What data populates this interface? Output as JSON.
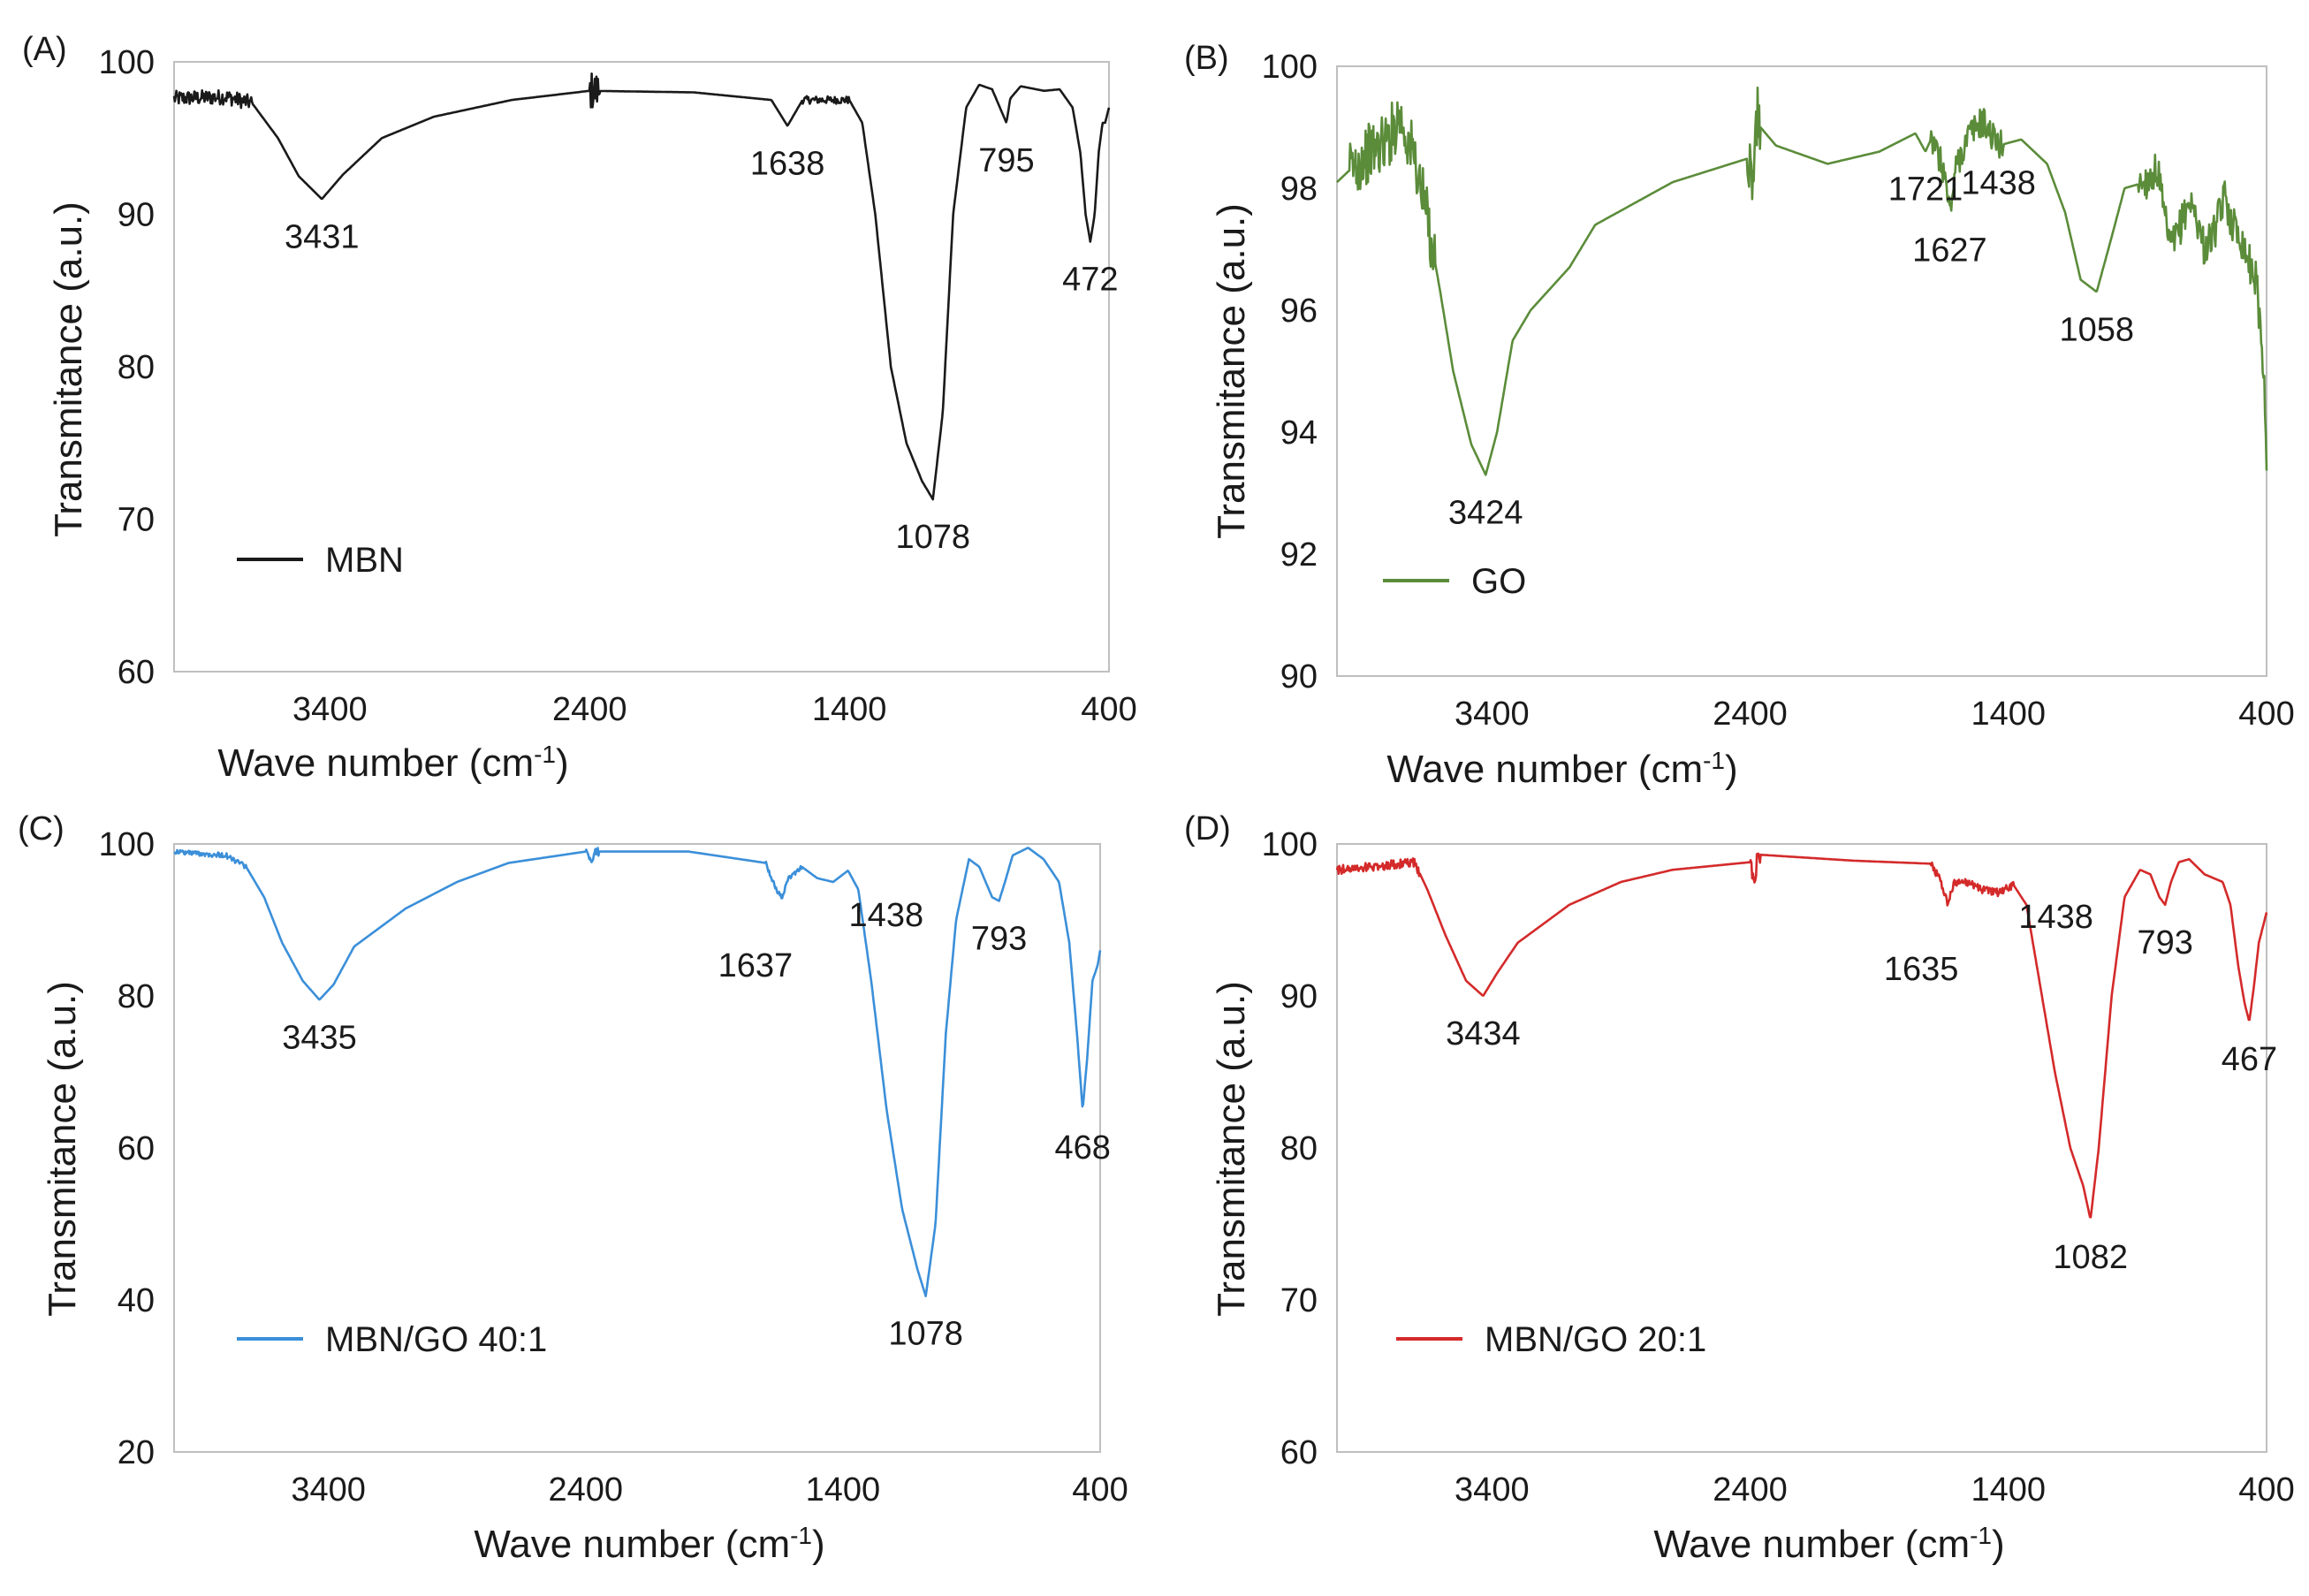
{
  "figure": {
    "background": "#ffffff"
  },
  "chart_data": [
    {
      "type": "line",
      "panel_label": "(A)",
      "series_name": "MBN",
      "color": "#1a1a1a",
      "xlabel": "Wave number (cm-1)",
      "ylabel": "Transmitance (a.u.)",
      "xlim": [
        4000,
        400
      ],
      "ylim": [
        60,
        100
      ],
      "xticks": [
        "3400",
        "2400",
        "1400",
        "400"
      ],
      "xtick_values": [
        3400,
        2400,
        1400,
        400
      ],
      "yticks": [
        "60",
        "70",
        "80",
        "90",
        "100"
      ],
      "ytick_values": [
        60,
        70,
        80,
        90,
        100
      ],
      "legend_position": "lower-left",
      "baseline": [
        [
          4000,
          97.6
        ],
        [
          3800,
          97.7
        ],
        [
          3700,
          97.3
        ],
        [
          3600,
          95.0
        ],
        [
          3520,
          92.5
        ],
        [
          3431,
          91.0
        ],
        [
          3350,
          92.6
        ],
        [
          3200,
          95.0
        ],
        [
          3000,
          96.4
        ],
        [
          2700,
          97.5
        ],
        [
          2400,
          98.1
        ],
        [
          2000,
          98.0
        ],
        [
          1700,
          97.5
        ],
        [
          1638,
          95.8
        ],
        [
          1580,
          97.5
        ],
        [
          1400,
          97.5
        ],
        [
          1350,
          96.0
        ],
        [
          1300,
          90.0
        ],
        [
          1240,
          80.0
        ],
        [
          1180,
          75.0
        ],
        [
          1120,
          72.5
        ],
        [
          1078,
          71.3
        ],
        [
          1040,
          77.0
        ],
        [
          1000,
          90.0
        ],
        [
          950,
          97.0
        ],
        [
          900,
          98.5
        ],
        [
          850,
          98.2
        ],
        [
          810,
          96.6
        ],
        [
          795,
          96.0
        ],
        [
          780,
          97.6
        ],
        [
          740,
          98.4
        ],
        [
          650,
          98.1
        ],
        [
          590,
          98.2
        ],
        [
          540,
          97.0
        ],
        [
          510,
          94.0
        ],
        [
          490,
          90.0
        ],
        [
          472,
          88.2
        ],
        [
          455,
          90.0
        ],
        [
          440,
          94.0
        ],
        [
          425,
          96.0
        ],
        [
          415,
          96.0
        ],
        [
          400,
          97.0
        ]
      ],
      "noise": [
        [
          4000,
          3700,
          0.5
        ],
        [
          2400,
          2360,
          1.3
        ],
        [
          1580,
          1400,
          0.25
        ]
      ],
      "peaks": [
        {
          "x": 3431,
          "y": 91.0,
          "label": "3431"
        },
        {
          "x": 1638,
          "y": 95.8,
          "label": "1638"
        },
        {
          "x": 1078,
          "y": 71.3,
          "label": "1078"
        },
        {
          "x": 795,
          "y": 96.0,
          "label": "795"
        },
        {
          "x": 472,
          "y": 88.2,
          "label": "472"
        }
      ]
    },
    {
      "type": "line",
      "panel_label": "(B)",
      "series_name": "GO",
      "color": "#5b8c3a",
      "xlabel": "Wave number (cm-1)",
      "ylabel": "Transmitance (a.u.)",
      "xlim": [
        4000,
        400
      ],
      "ylim": [
        90,
        100
      ],
      "xticks": [
        "3400",
        "2400",
        "1400",
        "400"
      ],
      "xtick_values": [
        3400,
        2400,
        1400,
        400
      ],
      "yticks": [
        "90",
        "92",
        "94",
        "96",
        "98",
        "100"
      ],
      "ytick_values": [
        90,
        92,
        94,
        96,
        98,
        100
      ],
      "legend_position": "lower-left",
      "baseline": [
        [
          4000,
          98.1
        ],
        [
          3900,
          98.5
        ],
        [
          3800,
          98.8
        ],
        [
          3760,
          99.2
        ],
        [
          3700,
          98.5
        ],
        [
          3650,
          97.5
        ],
        [
          3600,
          96.3
        ],
        [
          3550,
          95.0
        ],
        [
          3480,
          93.8
        ],
        [
          3424,
          93.3
        ],
        [
          3380,
          94.0
        ],
        [
          3320,
          95.5
        ],
        [
          3250,
          96.0
        ],
        [
          3100,
          96.7
        ],
        [
          3000,
          97.4
        ],
        [
          2700,
          98.1
        ],
        [
          2400,
          98.5
        ],
        [
          2390,
          97.8
        ],
        [
          2380,
          99.1
        ],
        [
          2300,
          98.7
        ],
        [
          2100,
          98.4
        ],
        [
          1900,
          98.6
        ],
        [
          1760,
          98.9
        ],
        [
          1721,
          98.6
        ],
        [
          1700,
          98.8
        ],
        [
          1650,
          98.3
        ],
        [
          1627,
          97.6
        ],
        [
          1600,
          98.4
        ],
        [
          1550,
          98.9
        ],
        [
          1500,
          99.1
        ],
        [
          1438,
          98.7
        ],
        [
          1350,
          98.8
        ],
        [
          1250,
          98.4
        ],
        [
          1180,
          97.6
        ],
        [
          1120,
          96.5
        ],
        [
          1058,
          96.3
        ],
        [
          1000,
          97.2
        ],
        [
          950,
          98.0
        ],
        [
          870,
          98.1
        ],
        [
          820,
          98.3
        ],
        [
          800,
          97.6
        ],
        [
          770,
          97.0
        ],
        [
          740,
          97.3
        ],
        [
          700,
          97.8
        ],
        [
          670,
          97.5
        ],
        [
          640,
          97.0
        ],
        [
          600,
          97.3
        ],
        [
          560,
          97.9
        ],
        [
          540,
          97.5
        ],
        [
          500,
          97.2
        ],
        [
          460,
          96.7
        ],
        [
          440,
          96.5
        ],
        [
          420,
          95.5
        ],
        [
          405,
          94.5
        ],
        [
          400,
          93.5
        ]
      ],
      "noise": [
        [
          3950,
          3620,
          0.5
        ],
        [
          2410,
          2360,
          0.6
        ],
        [
          1700,
          1420,
          0.25
        ],
        [
          900,
          400,
          0.3
        ]
      ],
      "peaks": [
        {
          "x": 3424,
          "y": 93.3,
          "label": "3424"
        },
        {
          "x": 1721,
          "y": 98.6,
          "label": "1721"
        },
        {
          "x": 1627,
          "y": 97.6,
          "label": "1627"
        },
        {
          "x": 1438,
          "y": 98.7,
          "label": "1438"
        },
        {
          "x": 1058,
          "y": 96.3,
          "label": "1058"
        }
      ]
    },
    {
      "type": "line",
      "panel_label": "(C)",
      "series_name": "MBN/GO 40:1",
      "color": "#3b8fd9",
      "xlabel": "Wave number (cm-1)",
      "ylabel": "Transmitance (a.u.)",
      "xlim": [
        4000,
        400
      ],
      "ylim": [
        20,
        100
      ],
      "xticks": [
        "3400",
        "2400",
        "1400",
        "400"
      ],
      "xtick_values": [
        3400,
        2400,
        1400,
        400
      ],
      "yticks": [
        "20",
        "40",
        "60",
        "80",
        "100"
      ],
      "ytick_values": [
        20,
        40,
        60,
        80,
        100
      ],
      "legend_position": "lower-left",
      "baseline": [
        [
          4000,
          99.0
        ],
        [
          3800,
          98.5
        ],
        [
          3720,
          97.0
        ],
        [
          3650,
          93.0
        ],
        [
          3580,
          87.0
        ],
        [
          3500,
          82.0
        ],
        [
          3435,
          79.5
        ],
        [
          3380,
          81.5
        ],
        [
          3300,
          86.5
        ],
        [
          3100,
          91.5
        ],
        [
          2900,
          95.0
        ],
        [
          2700,
          97.5
        ],
        [
          2400,
          99.0
        ],
        [
          2380,
          97.5
        ],
        [
          2360,
          99.0
        ],
        [
          2000,
          99.0
        ],
        [
          1700,
          97.5
        ],
        [
          1660,
          94.0
        ],
        [
          1637,
          93.0
        ],
        [
          1610,
          95.5
        ],
        [
          1560,
          97.0
        ],
        [
          1500,
          95.5
        ],
        [
          1438,
          95.0
        ],
        [
          1380,
          96.5
        ],
        [
          1340,
          94.0
        ],
        [
          1290,
          82.0
        ],
        [
          1230,
          65.0
        ],
        [
          1170,
          52.0
        ],
        [
          1110,
          44.0
        ],
        [
          1078,
          40.5
        ],
        [
          1040,
          50.0
        ],
        [
          1000,
          75.0
        ],
        [
          960,
          90.0
        ],
        [
          910,
          98.0
        ],
        [
          870,
          97.0
        ],
        [
          820,
          93.0
        ],
        [
          793,
          92.5
        ],
        [
          770,
          95.0
        ],
        [
          740,
          98.5
        ],
        [
          680,
          99.5
        ],
        [
          620,
          98.0
        ],
        [
          560,
          95.0
        ],
        [
          520,
          87.0
        ],
        [
          490,
          75.0
        ],
        [
          468,
          65.0
        ],
        [
          450,
          72.0
        ],
        [
          430,
          82.0
        ],
        [
          410,
          84.0
        ],
        [
          400,
          86.0
        ]
      ],
      "noise": [
        [
          4000,
          3720,
          0.35
        ],
        [
          2400,
          2350,
          0.6
        ],
        [
          1700,
          1560,
          0.3
        ]
      ],
      "peaks": [
        {
          "x": 3435,
          "y": 79.5,
          "label": "3435"
        },
        {
          "x": 1637,
          "y": 93.0,
          "label": "1637"
        },
        {
          "x": 1438,
          "y": 95.0,
          "label": "1438"
        },
        {
          "x": 1078,
          "y": 40.5,
          "label": "1078"
        },
        {
          "x": 793,
          "y": 92.5,
          "label": "793"
        },
        {
          "x": 468,
          "y": 65.0,
          "label": "468"
        }
      ]
    },
    {
      "type": "line",
      "panel_label": "(D)",
      "series_name": "MBN/GO 20:1",
      "color": "#d42a2a",
      "xlabel": "Wave number (cm-1)",
      "ylabel": "Transmitance (a.u.)",
      "xlim": [
        4000,
        400
      ],
      "ylim": [
        60,
        100
      ],
      "xticks": [
        "3400",
        "2400",
        "1400",
        "400"
      ],
      "xtick_values": [
        3400,
        2400,
        1400,
        400
      ],
      "yticks": [
        "60",
        "70",
        "80",
        "90",
        "100"
      ],
      "ytick_values": [
        60,
        70,
        80,
        90,
        100
      ],
      "legend_position": "lower-left",
      "baseline": [
        [
          4000,
          98.3
        ],
        [
          3800,
          98.6
        ],
        [
          3700,
          98.8
        ],
        [
          3650,
          97.0
        ],
        [
          3580,
          94.0
        ],
        [
          3500,
          91.0
        ],
        [
          3434,
          90.0
        ],
        [
          3380,
          91.5
        ],
        [
          3300,
          93.5
        ],
        [
          3100,
          96.0
        ],
        [
          2900,
          97.5
        ],
        [
          2700,
          98.3
        ],
        [
          2400,
          98.8
        ],
        [
          2385,
          97.3
        ],
        [
          2370,
          99.3
        ],
        [
          2000,
          98.9
        ],
        [
          1700,
          98.7
        ],
        [
          1660,
          97.5
        ],
        [
          1635,
          96.0
        ],
        [
          1610,
          97.5
        ],
        [
          1560,
          97.5
        ],
        [
          1500,
          97.0
        ],
        [
          1438,
          96.8
        ],
        [
          1380,
          97.3
        ],
        [
          1330,
          96.0
        ],
        [
          1280,
          91.0
        ],
        [
          1220,
          85.0
        ],
        [
          1160,
          80.0
        ],
        [
          1110,
          77.5
        ],
        [
          1082,
          75.3
        ],
        [
          1050,
          80.0
        ],
        [
          1000,
          90.0
        ],
        [
          950,
          96.5
        ],
        [
          890,
          98.3
        ],
        [
          850,
          98.0
        ],
        [
          815,
          96.5
        ],
        [
          793,
          96.0
        ],
        [
          770,
          97.5
        ],
        [
          740,
          98.8
        ],
        [
          700,
          99.0
        ],
        [
          640,
          98.0
        ],
        [
          570,
          97.5
        ],
        [
          540,
          96.0
        ],
        [
          510,
          92.0
        ],
        [
          485,
          89.5
        ],
        [
          467,
          88.3
        ],
        [
          450,
          90.5
        ],
        [
          430,
          93.5
        ],
        [
          415,
          94.5
        ],
        [
          400,
          95.5
        ]
      ],
      "noise": [
        [
          4000,
          3680,
          0.3
        ],
        [
          2400,
          2360,
          0.6
        ],
        [
          1700,
          1380,
          0.25
        ]
      ],
      "peaks": [
        {
          "x": 3434,
          "y": 90.0,
          "label": "3434"
        },
        {
          "x": 1635,
          "y": 96.0,
          "label": "1635"
        },
        {
          "x": 1438,
          "y": 96.8,
          "label": "1438"
        },
        {
          "x": 1082,
          "y": 75.3,
          "label": "1082"
        },
        {
          "x": 793,
          "y": 96.0,
          "label": "793"
        },
        {
          "x": 467,
          "y": 88.3,
          "label": "467"
        }
      ]
    }
  ]
}
